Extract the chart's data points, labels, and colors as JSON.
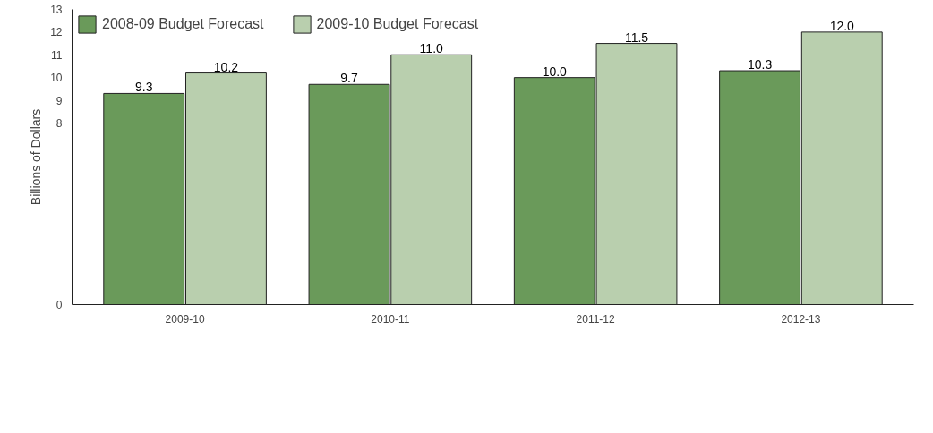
{
  "chart_data": {
    "type": "bar",
    "ylabel": "Billions of Dollars",
    "categories": [
      "2009-10",
      "2010-11",
      "2011-12",
      "2012-13"
    ],
    "series": [
      {
        "name": "2008-09 Budget Forecast",
        "color": "#6a9a5a",
        "values": [
          9.3,
          9.7,
          10.0,
          10.3
        ],
        "value_labels": [
          "9.3",
          "9.7",
          "10.0",
          "10.3"
        ]
      },
      {
        "name": "2009-10 Budget Forecast",
        "color": "#b9cfae",
        "values": [
          10.2,
          11.0,
          11.5,
          12.0
        ],
        "value_labels": [
          "10.2",
          "11.0",
          "11.5",
          "12.0"
        ]
      }
    ],
    "ylim": [
      0,
      13
    ],
    "yticks": [
      0,
      8,
      9,
      10,
      11,
      12,
      13
    ],
    "grid": false,
    "legend": "top left"
  }
}
